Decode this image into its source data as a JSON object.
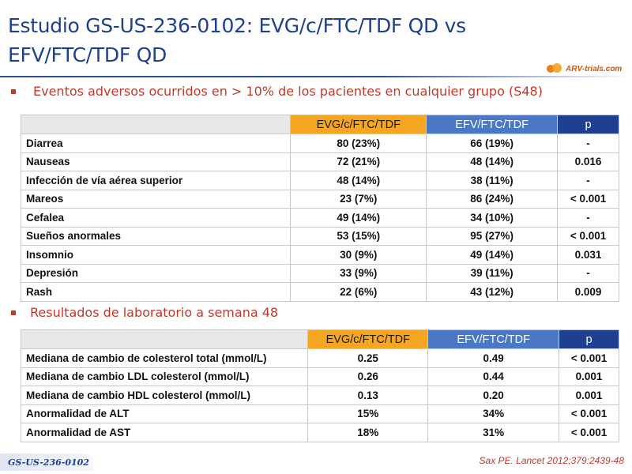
{
  "title": "Estudio GS-US-236-0102: EVG/c/FTC/TDF QD vs EFV/FTC/TDF QD",
  "logo": {
    "text": "ARV-trials.com",
    "icon": "arv-logo-icon",
    "color": "#e67e22"
  },
  "colors": {
    "evg_header": "#f5a623",
    "efv_header": "#4a78c2",
    "p_header": "#1f3f8f",
    "title": "#1f3f8f",
    "bullet": "#c0392b"
  },
  "section1": {
    "heading": "Eventos adversos ocurridos en > 10% de los pacientes en cualquier grupo (S48)",
    "columns": [
      "",
      "EVG/c/FTC/TDF",
      "EFV/FTC/TDF",
      "p"
    ],
    "rows": [
      [
        "Diarrea",
        "80 (23%)",
        "66 (19%)",
        "-"
      ],
      [
        "Nauseas",
        "72 (21%)",
        "48 (14%)",
        "0.016"
      ],
      [
        "Infección de vía aérea superior",
        "48 (14%)",
        "38 (11%)",
        "-"
      ],
      [
        "Mareos",
        "23 (7%)",
        "86 (24%)",
        "< 0.001"
      ],
      [
        "Cefalea",
        "49 (14%)",
        "34 (10%)",
        "-"
      ],
      [
        "Sueños anormales",
        "53 (15%)",
        "95 (27%)",
        "< 0.001"
      ],
      [
        "Insomnio",
        "30 (9%)",
        "49 (14%)",
        "0.031"
      ],
      [
        "Depresión",
        "33 (9%)",
        "39 (11%)",
        "-"
      ],
      [
        "Rash",
        "22 (6%)",
        "43 (12%)",
        "0.009"
      ]
    ]
  },
  "section2": {
    "heading": "Resultados de laboratorio a semana 48",
    "columns": [
      "",
      "EVG/c/FTC/TDF",
      "EFV/FTC/TDF",
      "p"
    ],
    "rows": [
      [
        "Mediana de cambio de colesterol total (mmol/L)",
        "0.25",
        "0.49",
        "< 0.001"
      ],
      [
        "Mediana de cambio LDL colesterol (mmol/L)",
        "0.26",
        "0.44",
        "0.001"
      ],
      [
        "Mediana de cambio HDL colesterol (mmol/L)",
        "0.13",
        "0.20",
        "0.001"
      ],
      [
        "Anormalidad de ALT",
        "15%",
        "34%",
        "< 0.001"
      ],
      [
        "Anormalidad de AST",
        "18%",
        "31%",
        "< 0.001"
      ]
    ]
  },
  "footer": {
    "study_tag": "GS-US-236-0102",
    "citation": "Sax PE. Lancet 2012;379:2439-48"
  }
}
